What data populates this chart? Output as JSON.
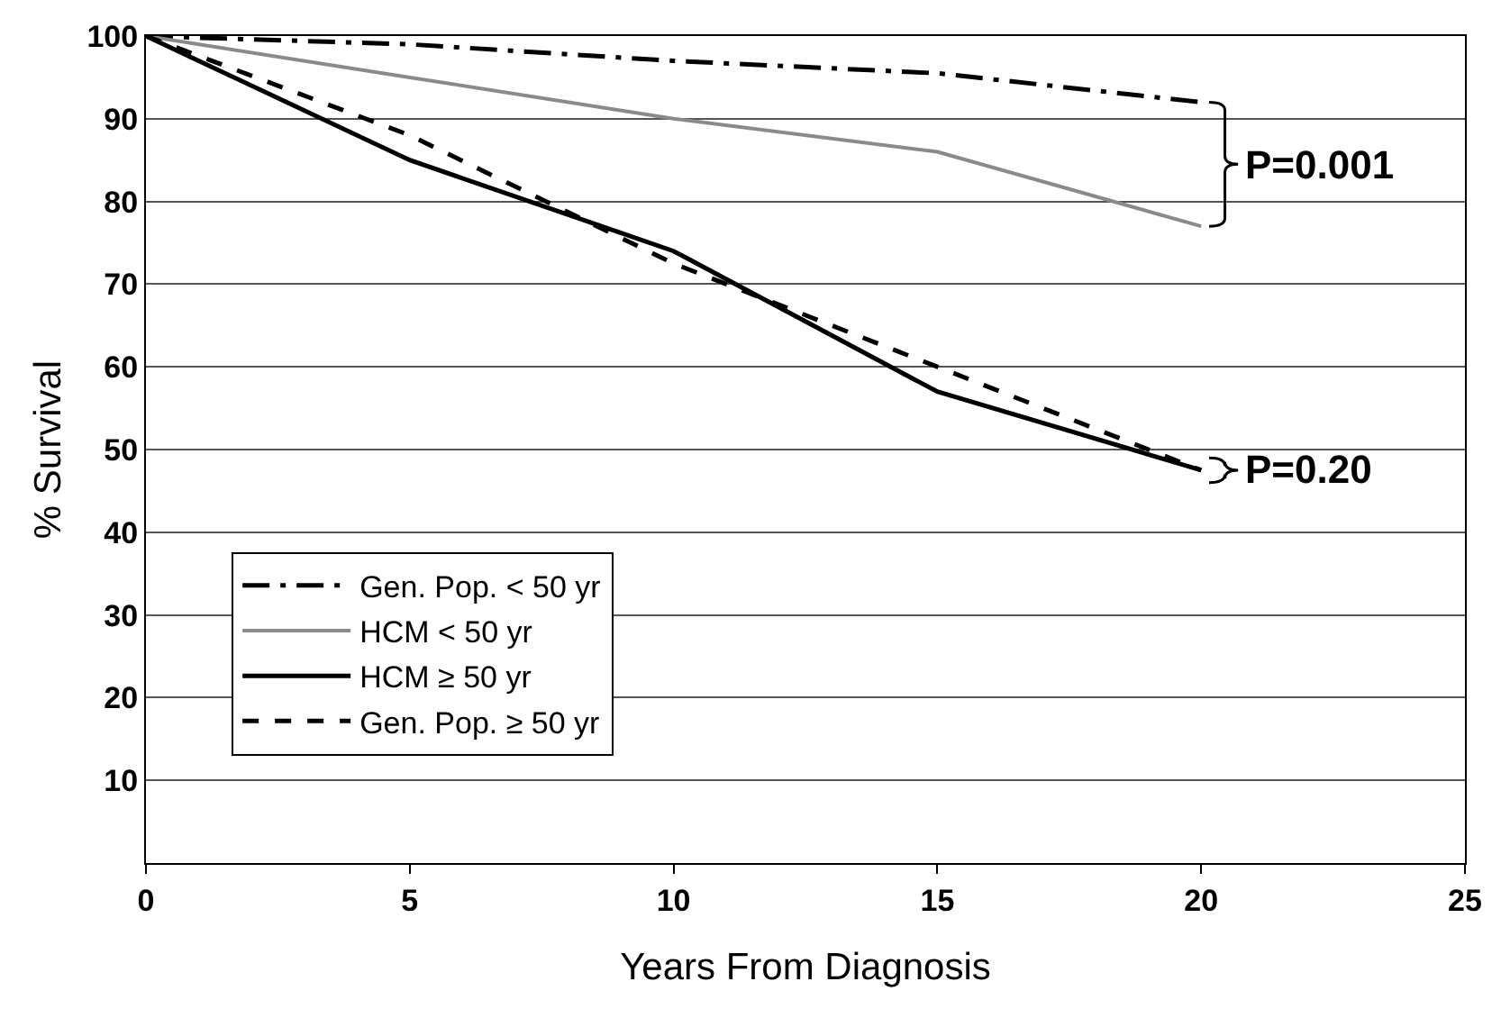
{
  "chart_data": {
    "type": "line",
    "xlabel": "Years From Diagnosis",
    "ylabel": "% Survival",
    "x": [
      0,
      5,
      10,
      15,
      20
    ],
    "series": [
      {
        "name": "Gen. Pop. < 50 yr",
        "color": "#000000",
        "line_style": "dashdot",
        "values": [
          100,
          99,
          97,
          95.5,
          92
        ]
      },
      {
        "name": "HCM < 50 yr",
        "color": "#8a8a8a",
        "line_style": "solid",
        "values": [
          100,
          95,
          90,
          86,
          77
        ]
      },
      {
        "name": "HCM ≥ 50 yr",
        "color": "#000000",
        "line_style": "solid",
        "values": [
          100,
          85,
          74,
          57,
          47.5
        ]
      },
      {
        "name": "Gen. Pop. ≥ 50 yr",
        "color": "#000000",
        "line_style": "dashed",
        "values": [
          100,
          88,
          72.5,
          60,
          47.5
        ]
      }
    ],
    "annotations": [
      "P=0.001",
      "P=0.20"
    ],
    "xlim": [
      0,
      25
    ],
    "xticks": [
      0,
      5,
      10,
      15,
      20,
      25
    ],
    "ylim": [
      0,
      100
    ],
    "yticks": [
      10,
      20,
      30,
      40,
      50,
      60,
      70,
      80,
      90,
      100
    ],
    "grid": "y",
    "legend": "bottom left",
    "marker": "none"
  }
}
